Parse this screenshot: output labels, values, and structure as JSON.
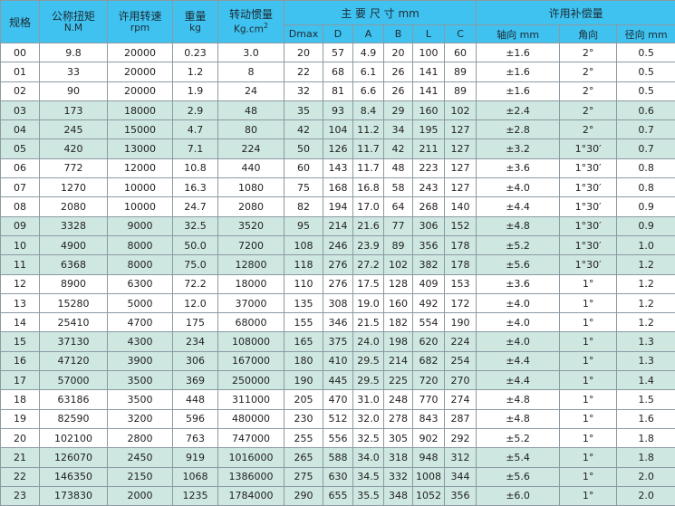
{
  "header": {
    "spec": "规格",
    "torque": {
      "label": "公称扭矩",
      "unit": "N.M"
    },
    "speed": {
      "label": "许用转速",
      "unit": "rpm"
    },
    "weight": {
      "label": "重量",
      "unit": "kg"
    },
    "inertia": {
      "label": "转动惯量",
      "unit": "Kg.cm",
      "unit_sup": "2"
    },
    "dimensions": {
      "label": "主 要 尺 寸 mm",
      "cols": [
        "Dmax",
        "D",
        "A",
        "B",
        "L",
        "C"
      ]
    },
    "compensation": {
      "label": "许用补偿量",
      "cols": [
        "轴向 mm",
        "角向",
        "径向 mm"
      ]
    }
  },
  "colors": {
    "header_bg": "#3fc2ef",
    "alt_row_bg": "#cfe7e1",
    "border": "#8a9aa3"
  },
  "rows": [
    [
      "00",
      "9.8",
      "20000",
      "0.23",
      "3.0",
      "20",
      "57",
      "4.9",
      "20",
      "100",
      "60",
      "±1.6",
      "2°",
      "0.5"
    ],
    [
      "01",
      "33",
      "20000",
      "1.2",
      "8",
      "22",
      "68",
      "6.1",
      "26",
      "141",
      "89",
      "±1.6",
      "2°",
      "0.5"
    ],
    [
      "02",
      "90",
      "20000",
      "1.9",
      "24",
      "32",
      "81",
      "6.6",
      "26",
      "141",
      "89",
      "±1.6",
      "2°",
      "0.5"
    ],
    [
      "03",
      "173",
      "18000",
      "2.9",
      "48",
      "35",
      "93",
      "8.4",
      "29",
      "160",
      "102",
      "±2.4",
      "2°",
      "0.6"
    ],
    [
      "04",
      "245",
      "15000",
      "4.7",
      "80",
      "42",
      "104",
      "11.2",
      "34",
      "195",
      "127",
      "±2.8",
      "2°",
      "0.7"
    ],
    [
      "05",
      "420",
      "13000",
      "7.1",
      "224",
      "50",
      "126",
      "11.7",
      "42",
      "211",
      "127",
      "±3.2",
      "1°30′",
      "0.7"
    ],
    [
      "06",
      "772",
      "12000",
      "10.8",
      "440",
      "60",
      "143",
      "11.7",
      "48",
      "223",
      "127",
      "±3.6",
      "1°30′",
      "0.8"
    ],
    [
      "07",
      "1270",
      "10000",
      "16.3",
      "1080",
      "75",
      "168",
      "16.8",
      "58",
      "243",
      "127",
      "±4.0",
      "1°30′",
      "0.8"
    ],
    [
      "08",
      "2080",
      "10000",
      "24.7",
      "2080",
      "82",
      "194",
      "17.0",
      "64",
      "268",
      "140",
      "±4.4",
      "1°30′",
      "0.9"
    ],
    [
      "09",
      "3328",
      "9000",
      "32.5",
      "3520",
      "95",
      "214",
      "21.6",
      "77",
      "306",
      "152",
      "±4.8",
      "1°30′",
      "0.9"
    ],
    [
      "10",
      "4900",
      "8000",
      "50.0",
      "7200",
      "108",
      "246",
      "23.9",
      "89",
      "356",
      "178",
      "±5.2",
      "1°30′",
      "1.0"
    ],
    [
      "11",
      "6368",
      "8000",
      "75.0",
      "12800",
      "118",
      "276",
      "27.2",
      "102",
      "382",
      "178",
      "±5.6",
      "1°30′",
      "1.2"
    ],
    [
      "12",
      "8900",
      "6300",
      "72.2",
      "18000",
      "110",
      "276",
      "17.5",
      "128",
      "409",
      "153",
      "±3.6",
      "1°",
      "1.2"
    ],
    [
      "13",
      "15280",
      "5000",
      "12.0",
      "37000",
      "135",
      "308",
      "19.0",
      "160",
      "492",
      "172",
      "±4.0",
      "1°",
      "1.2"
    ],
    [
      "14",
      "25410",
      "4700",
      "175",
      "68000",
      "155",
      "346",
      "21.5",
      "182",
      "554",
      "190",
      "±4.0",
      "1°",
      "1.2"
    ],
    [
      "15",
      "37130",
      "4300",
      "234",
      "108000",
      "165",
      "375",
      "24.0",
      "198",
      "620",
      "224",
      "±4.0",
      "1°",
      "1.3"
    ],
    [
      "16",
      "47120",
      "3900",
      "306",
      "167000",
      "180",
      "410",
      "29.5",
      "214",
      "682",
      "254",
      "±4.4",
      "1°",
      "1.3"
    ],
    [
      "17",
      "57000",
      "3500",
      "369",
      "250000",
      "190",
      "445",
      "29.5",
      "225",
      "720",
      "270",
      "±4.4",
      "1°",
      "1.4"
    ],
    [
      "18",
      "63186",
      "3500",
      "448",
      "311000",
      "205",
      "470",
      "31.0",
      "248",
      "770",
      "274",
      "±4.8",
      "1°",
      "1.5"
    ],
    [
      "19",
      "82590",
      "3200",
      "596",
      "480000",
      "230",
      "512",
      "32.0",
      "278",
      "843",
      "287",
      "±4.8",
      "1°",
      "1.6"
    ],
    [
      "20",
      "102100",
      "2800",
      "763",
      "747000",
      "255",
      "556",
      "32.5",
      "305",
      "902",
      "292",
      "±5.2",
      "1°",
      "1.8"
    ],
    [
      "21",
      "126070",
      "2450",
      "919",
      "1016000",
      "265",
      "588",
      "34.0",
      "318",
      "948",
      "312",
      "±5.4",
      "1°",
      "1.8"
    ],
    [
      "22",
      "146350",
      "2150",
      "1068",
      "1386000",
      "275",
      "630",
      "34.5",
      "332",
      "1008",
      "344",
      "±5.6",
      "1°",
      "2.0"
    ],
    [
      "23",
      "173830",
      "2000",
      "1235",
      "1784000",
      "290",
      "655",
      "35.5",
      "348",
      "1052",
      "356",
      "±6.0",
      "1°",
      "2.0"
    ]
  ],
  "alt_row_groups": [
    "03",
    "04",
    "05",
    "09",
    "10",
    "11",
    "15",
    "16",
    "17",
    "21",
    "22",
    "23"
  ]
}
